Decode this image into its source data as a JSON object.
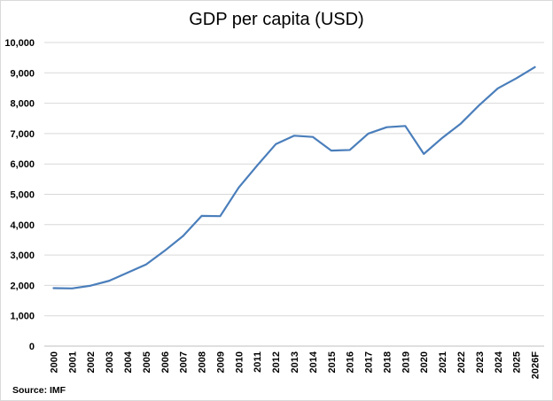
{
  "chart_data": {
    "type": "line",
    "title": "GDP per capita (USD)",
    "xlabel": "",
    "ylabel": "",
    "ylim": [
      0,
      10000
    ],
    "yticks": [
      "0",
      "1,000",
      "2,000",
      "3,000",
      "4,000",
      "5,000",
      "6,000",
      "7,000",
      "8,000",
      "9,000",
      "10,000"
    ],
    "ytick_values": [
      0,
      1000,
      2000,
      3000,
      4000,
      5000,
      6000,
      7000,
      8000,
      9000,
      10000
    ],
    "categories": [
      "2000",
      "2001",
      "2002",
      "2003",
      "2004",
      "2005",
      "2006",
      "2007",
      "2008",
      "2009",
      "2010",
      "2011",
      "2012",
      "2013",
      "2014",
      "2015",
      "2016",
      "2017",
      "2018",
      "2019",
      "2020",
      "2021",
      "2022",
      "2023",
      "2024",
      "2025",
      "2026F"
    ],
    "series": [
      {
        "values": [
          1910,
          1900,
          1990,
          2150,
          2420,
          2690,
          3140,
          3630,
          4290,
          4280,
          5220,
          5950,
          6650,
          6930,
          6890,
          6440,
          6460,
          7000,
          7210,
          7250,
          6330,
          6860,
          7330,
          7940,
          8490,
          8820,
          9190
        ],
        "color": "#4a7ebb"
      }
    ],
    "grid": true,
    "legend": "none"
  },
  "source_note": "Source: IMF"
}
